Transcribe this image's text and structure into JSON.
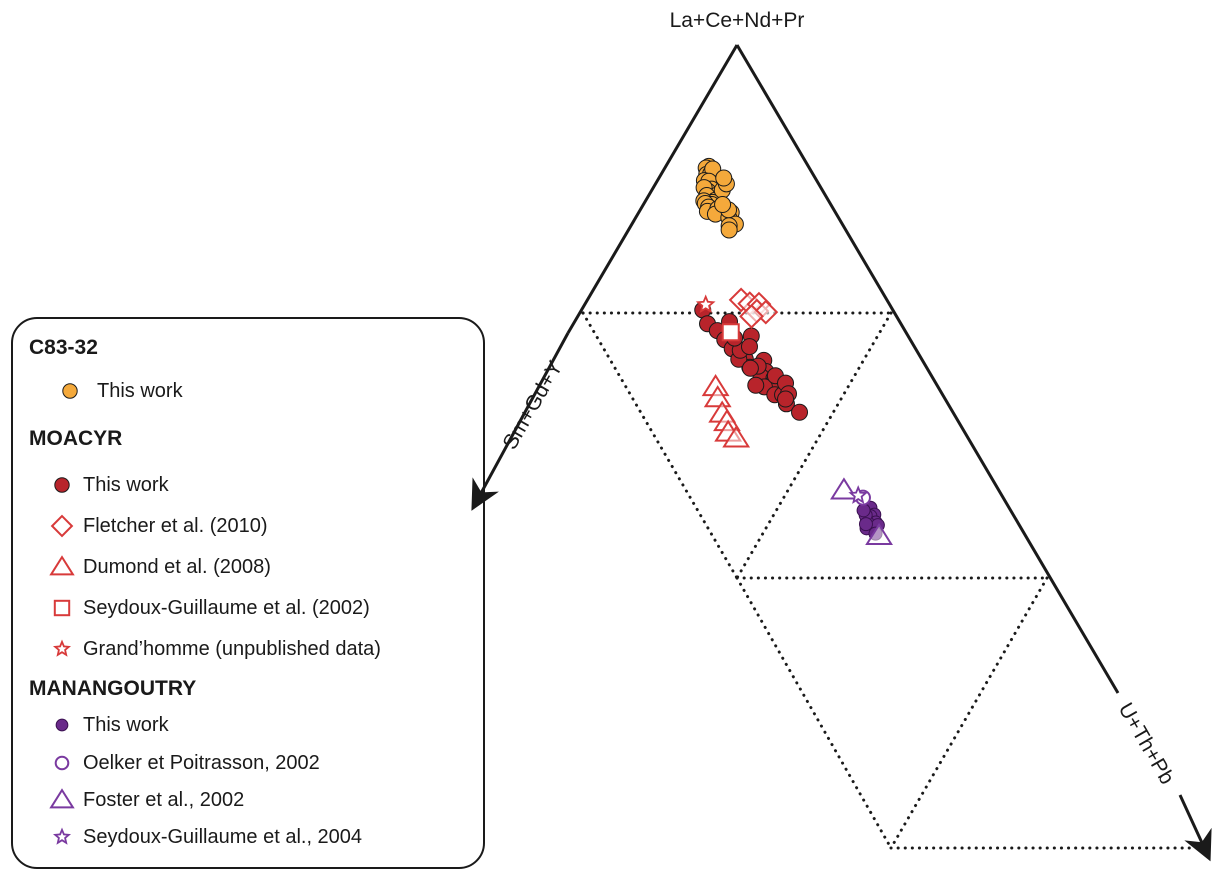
{
  "chart_data": {
    "type": "ternary-scatter",
    "apices": {
      "top": "La+Ce+Nd+Pr",
      "left": "Sm+Gd+Y",
      "right": "U+Th+Pb"
    },
    "units": "normalized fractions (top, left, right)",
    "guide_lines": "dotted inner triangles",
    "legend_position": "left",
    "legend": {
      "groups": [
        {
          "title": "C83-32",
          "entries": [
            {
              "label": "This work",
              "marker": "circle-filled",
              "color": "#f4a93b"
            }
          ]
        },
        {
          "title": "MOACYR",
          "entries": [
            {
              "label": "This work",
              "marker": "circle-filled",
              "color": "#b8242b"
            },
            {
              "label": "Fletcher et al. (2010)",
              "marker": "diamond-open",
              "color": "#d83a3a"
            },
            {
              "label": "Dumond et al. (2008)",
              "marker": "triangle-open",
              "color": "#d83a3a"
            },
            {
              "label": "Seydoux-Guillaume et al. (2002)",
              "marker": "square-open",
              "color": "#d83a3a"
            },
            {
              "label": "Grand’homme (unpublished data)",
              "marker": "star-open",
              "color": "#d83a3a"
            }
          ]
        },
        {
          "title": "MANANGOUTRY",
          "entries": [
            {
              "label": "This work",
              "marker": "circle-filled-small",
              "color": "#6a2a8a"
            },
            {
              "label": "Oelker et Poitrasson, 2002",
              "marker": "circle-open",
              "color": "#7a3aa0"
            },
            {
              "label": "Foster et al., 2002",
              "marker": "triangle-open",
              "color": "#7a3aa0"
            },
            {
              "label": "Seydoux-Guillaume et al., 2004",
              "marker": "star-open",
              "color": "#7a3aa0"
            }
          ]
        }
      ]
    },
    "series": [
      {
        "name": "C83-32 This work",
        "marker": "circle-filled",
        "color": "#f4a93b",
        "points": [
          [
            0.771,
            0.162,
            0.067
          ],
          [
            0.768,
            0.168,
            0.064
          ],
          [
            0.756,
            0.173,
            0.071
          ],
          [
            0.757,
            0.166,
            0.077
          ],
          [
            0.766,
            0.158,
            0.076
          ],
          [
            0.738,
            0.168,
            0.094
          ],
          [
            0.744,
            0.183,
            0.073
          ],
          [
            0.743,
            0.176,
            0.081
          ],
          [
            0.728,
            0.179,
            0.093
          ],
          [
            0.724,
            0.187,
            0.089
          ],
          [
            0.717,
            0.175,
            0.108
          ],
          [
            0.731,
            0.19,
            0.079
          ],
          [
            0.716,
            0.193,
            0.091
          ],
          [
            0.707,
            0.183,
            0.11
          ],
          [
            0.703,
            0.19,
            0.107
          ],
          [
            0.706,
            0.203,
            0.091
          ],
          [
            0.699,
            0.193,
            0.108
          ],
          [
            0.701,
            0.203,
            0.096
          ],
          [
            0.694,
            0.201,
            0.105
          ],
          [
            0.686,
            0.207,
            0.107
          ],
          [
            0.691,
            0.187,
            0.122
          ],
          [
            0.681,
            0.196,
            0.123
          ],
          [
            0.726,
            0.162,
            0.112
          ],
          [
            0.738,
            0.149,
            0.113
          ],
          [
            0.749,
            0.148,
            0.103
          ],
          [
            0.684,
            0.168,
            0.148
          ],
          [
            0.674,
            0.177,
            0.149
          ],
          [
            0.662,
            0.172,
            0.166
          ],
          [
            0.689,
            0.17,
            0.141
          ],
          [
            0.699,
            0.175,
            0.126
          ],
          [
            0.659,
            0.184,
            0.157
          ],
          [
            0.651,
            0.188,
            0.161
          ]
        ]
      },
      {
        "name": "MOACYR This work",
        "marker": "circle-filled",
        "color": "#b8242b",
        "points": [
          [
            0.5,
            0.308,
            0.192
          ],
          [
            0.474,
            0.313,
            0.213
          ],
          [
            0.461,
            0.303,
            0.236
          ],
          [
            0.478,
            0.274,
            0.248
          ],
          [
            0.444,
            0.299,
            0.257
          ],
          [
            0.427,
            0.295,
            0.278
          ],
          [
            0.451,
            0.251,
            0.298
          ],
          [
            0.407,
            0.283,
            0.31
          ],
          [
            0.392,
            0.283,
            0.325
          ],
          [
            0.405,
            0.253,
            0.342
          ],
          [
            0.384,
            0.26,
            0.356
          ],
          [
            0.374,
            0.273,
            0.353
          ],
          [
            0.371,
            0.253,
            0.376
          ],
          [
            0.361,
            0.26,
            0.379
          ],
          [
            0.355,
            0.277,
            0.368
          ],
          [
            0.34,
            0.267,
            0.393
          ],
          [
            0.34,
            0.254,
            0.406
          ],
          [
            0.323,
            0.256,
            0.421
          ],
          [
            0.358,
            0.29,
            0.352
          ],
          [
            0.407,
            0.294,
            0.299
          ],
          [
            0.424,
            0.283,
            0.293
          ],
          [
            0.394,
            0.268,
            0.338
          ],
          [
            0.376,
            0.248,
            0.376
          ],
          [
            0.362,
            0.238,
            0.4
          ],
          [
            0.342,
            0.243,
            0.415
          ],
          [
            0.332,
            0.253,
            0.415
          ],
          [
            0.307,
            0.242,
            0.451
          ],
          [
            0.431,
            0.264,
            0.305
          ],
          [
            0.447,
            0.281,
            0.272
          ],
          [
            0.39,
            0.283,
            0.327
          ]
        ]
      },
      {
        "name": "Fletcher et al. (2010)",
        "marker": "diamond-open",
        "color": "#d83a3a",
        "points": [
          [
            0.519,
            0.234,
            0.247
          ],
          [
            0.512,
            0.223,
            0.265
          ],
          [
            0.511,
            0.208,
            0.281
          ],
          [
            0.498,
            0.218,
            0.284
          ],
          [
            0.496,
            0.204,
            0.3
          ],
          [
            0.488,
            0.232,
            0.28
          ]
        ]
      },
      {
        "name": "Dumond et al. (2008)",
        "marker": "triangle-open",
        "color": "#d83a3a",
        "points": [
          [
            0.355,
            0.359,
            0.286
          ],
          [
            0.334,
            0.366,
            0.3
          ],
          [
            0.305,
            0.373,
            0.322
          ],
          [
            0.289,
            0.373,
            0.338
          ],
          [
            0.269,
            0.381,
            0.35
          ],
          [
            0.258,
            0.373,
            0.369
          ]
        ]
      },
      {
        "name": "Seydoux-Guillaume et al. (2002)",
        "marker": "square-open",
        "color": "#d83a3a",
        "points": [
          [
            0.458,
            0.282,
            0.26
          ]
        ]
      },
      {
        "name": "Grand’homme (unpublished data)",
        "marker": "star-open",
        "color": "#d83a3a",
        "points": [
          [
            0.51,
            0.298,
            0.192
          ]
        ]
      },
      {
        "name": "MANANGOUTRY This work",
        "marker": "circle-filled-small",
        "color": "#6a2a8a",
        "points": [
          [
            0.127,
            0.213,
            0.66
          ],
          [
            0.114,
            0.213,
            0.673
          ],
          [
            0.111,
            0.221,
            0.668
          ],
          [
            0.099,
            0.218,
            0.683
          ],
          [
            0.101,
            0.232,
            0.667
          ],
          [
            0.089,
            0.227,
            0.684
          ],
          [
            0.088,
            0.239,
            0.673
          ],
          [
            0.094,
            0.217,
            0.689
          ],
          [
            0.078,
            0.229,
            0.693
          ],
          [
            0.113,
            0.228,
            0.659
          ],
          [
            0.122,
            0.227,
            0.651
          ],
          [
            0.096,
            0.236,
            0.668
          ]
        ]
      },
      {
        "name": "Oelker et Poitrasson, 2002",
        "marker": "circle-open",
        "color": "#7a3aa0",
        "points": [
          [
            0.146,
            0.216,
            0.638
          ]
        ]
      },
      {
        "name": "Foster et al., 2002",
        "marker": "triangle-open",
        "color": "#7a3aa0",
        "points": [
          [
            0.16,
            0.241,
            0.599
          ],
          [
            0.074,
            0.225,
            0.701
          ]
        ]
      },
      {
        "name": "Seydoux-Guillaume et al., 2004",
        "marker": "star-open",
        "color": "#7a3aa0",
        "points": [
          [
            0.15,
            0.222,
            0.628
          ]
        ]
      }
    ]
  }
}
